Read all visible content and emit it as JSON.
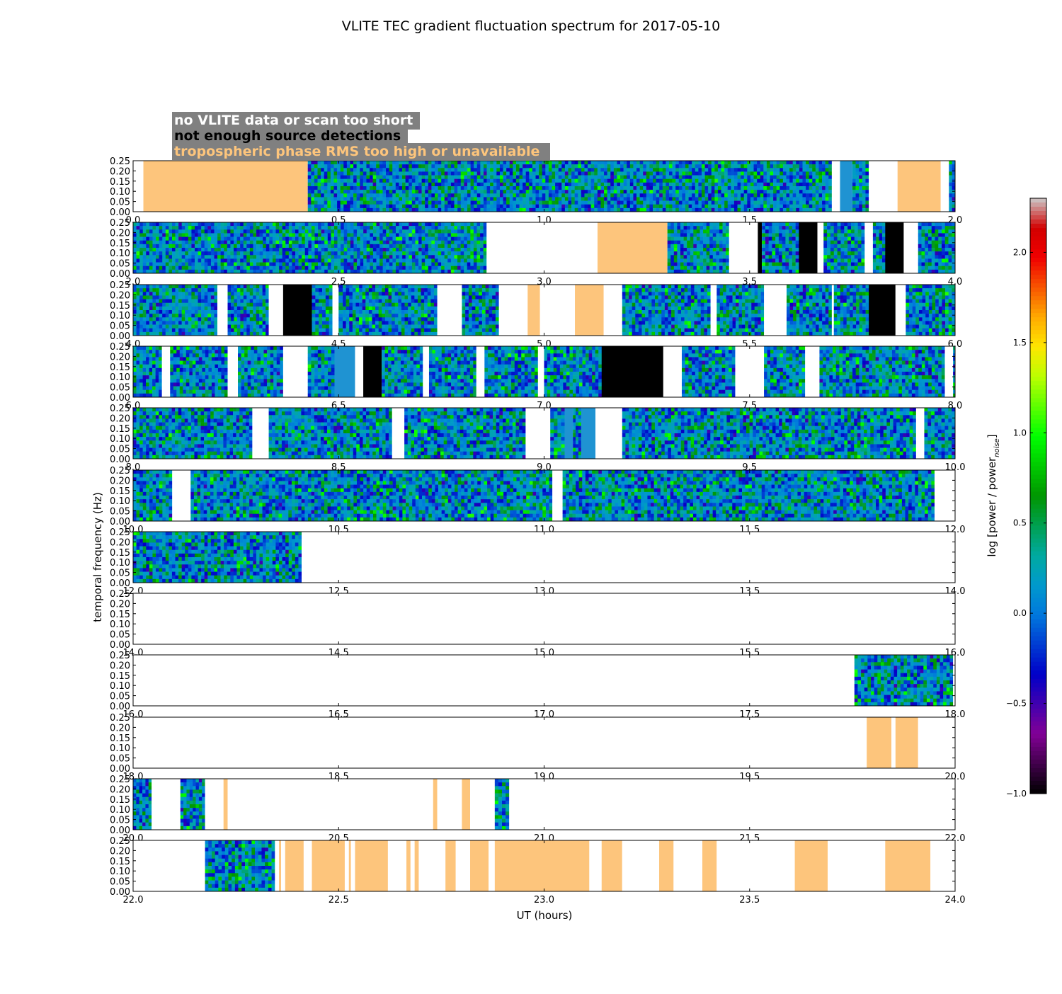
{
  "chart_data": {
    "type": "heatmap",
    "title": "VLITE TEC gradient fluctuation spectrum for 2017-05-10",
    "xlabel": "UT (hours)",
    "ylabel": "temporal frequency (Hz)",
    "ylim": [
      0.0,
      0.25
    ],
    "y_ticks": [
      "0.00",
      "0.05",
      "0.10",
      "0.15",
      "0.20",
      "0.25"
    ],
    "legend": {
      "placement": "top-left",
      "background": "#808080",
      "entries": [
        {
          "label": "no VLITE data or scan too short",
          "color": "#ffffff"
        },
        {
          "label": "not enough source detections",
          "color": "#000000"
        },
        {
          "label": "tropospheric phase RMS too high or unavailable",
          "color": "#fdc57c"
        }
      ]
    },
    "colorbar": {
      "label": "log [power / power",
      "label_subscript": "noise",
      "label_close": "]",
      "range": [
        -1.0,
        2.3
      ],
      "ticks": [
        "−1.0",
        "−0.5",
        "0.0",
        "0.5",
        "1.0",
        "1.5",
        "2.0"
      ],
      "colormap": "nipy_spectral"
    },
    "status_colors": {
      "data": "spectrum",
      "nodata": "#ffffff",
      "black": "#000000",
      "tropo": "#fdc57c",
      "flat": "#1f93d2"
    },
    "panels": [
      {
        "xlim": [
          0.0,
          2.0
        ],
        "x_ticks": [
          "0.0",
          "0.5",
          "1.0",
          "1.5",
          "2.0"
        ],
        "segments": [
          [
            0.0,
            0.025,
            "nodata"
          ],
          [
            0.025,
            0.425,
            "tropo"
          ],
          [
            0.425,
            1.7,
            "data"
          ],
          [
            1.7,
            1.72,
            "nodata"
          ],
          [
            1.72,
            1.75,
            "flat"
          ],
          [
            1.75,
            1.79,
            "data"
          ],
          [
            1.79,
            1.86,
            "nodata"
          ],
          [
            1.86,
            1.965,
            "tropo"
          ],
          [
            1.965,
            1.985,
            "nodata"
          ],
          [
            1.985,
            2.0,
            "data"
          ]
        ]
      },
      {
        "xlim": [
          2.0,
          4.0
        ],
        "x_ticks": [
          "2.0",
          "2.5",
          "3.0",
          "3.5",
          "4.0"
        ],
        "segments": [
          [
            2.0,
            2.86,
            "data"
          ],
          [
            2.86,
            3.13,
            "nodata"
          ],
          [
            3.13,
            3.3,
            "tropo"
          ],
          [
            3.3,
            3.45,
            "data"
          ],
          [
            3.45,
            3.52,
            "nodata"
          ],
          [
            3.52,
            3.53,
            "black"
          ],
          [
            3.53,
            3.62,
            "data"
          ],
          [
            3.62,
            3.665,
            "black"
          ],
          [
            3.665,
            3.68,
            "nodata"
          ],
          [
            3.68,
            3.705,
            "data"
          ],
          [
            3.705,
            3.78,
            "data"
          ],
          [
            3.78,
            3.8,
            "nodata"
          ],
          [
            3.8,
            3.83,
            "data"
          ],
          [
            3.83,
            3.875,
            "black"
          ],
          [
            3.875,
            3.91,
            "nodata"
          ],
          [
            3.91,
            4.0,
            "data"
          ]
        ]
      },
      {
        "xlim": [
          4.0,
          6.0
        ],
        "x_ticks": [
          "4.0",
          "4.5",
          "5.0",
          "5.5",
          "6.0"
        ],
        "segments": [
          [
            4.0,
            4.205,
            "data"
          ],
          [
            4.205,
            4.23,
            "nodata"
          ],
          [
            4.23,
            4.33,
            "data"
          ],
          [
            4.33,
            4.365,
            "nodata"
          ],
          [
            4.365,
            4.435,
            "black"
          ],
          [
            4.435,
            4.485,
            "data"
          ],
          [
            4.485,
            4.5,
            "nodata"
          ],
          [
            4.5,
            4.51,
            "data"
          ],
          [
            4.51,
            4.74,
            "data"
          ],
          [
            4.74,
            4.8,
            "nodata"
          ],
          [
            4.8,
            4.89,
            "data"
          ],
          [
            4.89,
            4.96,
            "nodata"
          ],
          [
            4.96,
            4.99,
            "tropo"
          ],
          [
            4.99,
            5.075,
            "nodata"
          ],
          [
            5.075,
            5.145,
            "tropo"
          ],
          [
            5.145,
            5.19,
            "nodata"
          ],
          [
            5.19,
            5.405,
            "data"
          ],
          [
            5.405,
            5.42,
            "nodata"
          ],
          [
            5.42,
            5.535,
            "data"
          ],
          [
            5.535,
            5.59,
            "nodata"
          ],
          [
            5.59,
            5.7,
            "data"
          ],
          [
            5.7,
            5.705,
            "nodata"
          ],
          [
            5.705,
            5.79,
            "data"
          ],
          [
            5.79,
            5.855,
            "black"
          ],
          [
            5.855,
            5.88,
            "nodata"
          ],
          [
            5.88,
            6.0,
            "data"
          ]
        ]
      },
      {
        "xlim": [
          6.0,
          8.0
        ],
        "x_ticks": [
          "6.0",
          "6.5",
          "7.0",
          "7.5",
          "8.0"
        ],
        "segments": [
          [
            6.0,
            6.07,
            "data"
          ],
          [
            6.07,
            6.09,
            "nodata"
          ],
          [
            6.09,
            6.23,
            "data"
          ],
          [
            6.23,
            6.255,
            "nodata"
          ],
          [
            6.255,
            6.365,
            "data"
          ],
          [
            6.365,
            6.425,
            "nodata"
          ],
          [
            6.425,
            6.49,
            "data"
          ],
          [
            6.49,
            6.54,
            "flat"
          ],
          [
            6.54,
            6.56,
            "nodata"
          ],
          [
            6.56,
            6.605,
            "black"
          ],
          [
            6.605,
            6.705,
            "data"
          ],
          [
            6.705,
            6.72,
            "nodata"
          ],
          [
            6.72,
            6.835,
            "data"
          ],
          [
            6.835,
            6.855,
            "nodata"
          ],
          [
            6.855,
            6.985,
            "data"
          ],
          [
            6.985,
            7.0,
            "nodata"
          ],
          [
            7.0,
            7.015,
            "data"
          ],
          [
            7.015,
            7.14,
            "data"
          ],
          [
            7.14,
            7.29,
            "black"
          ],
          [
            7.29,
            7.335,
            "nodata"
          ],
          [
            7.335,
            7.465,
            "data"
          ],
          [
            7.465,
            7.535,
            "nodata"
          ],
          [
            7.535,
            7.635,
            "data"
          ],
          [
            7.635,
            7.67,
            "nodata"
          ],
          [
            7.67,
            7.975,
            "data"
          ],
          [
            7.975,
            7.995,
            "nodata"
          ],
          [
            7.995,
            8.0,
            "data"
          ]
        ]
      },
      {
        "xlim": [
          8.0,
          10.0
        ],
        "x_ticks": [
          "8.0",
          "8.5",
          "9.0",
          "9.5",
          "10.0"
        ],
        "segments": [
          [
            8.0,
            8.29,
            "data"
          ],
          [
            8.29,
            8.33,
            "nodata"
          ],
          [
            8.33,
            8.63,
            "data"
          ],
          [
            8.63,
            8.66,
            "nodata"
          ],
          [
            8.66,
            8.955,
            "data"
          ],
          [
            8.955,
            9.015,
            "nodata"
          ],
          [
            9.015,
            9.05,
            "data"
          ],
          [
            9.05,
            9.07,
            "flat"
          ],
          [
            9.07,
            9.09,
            "data"
          ],
          [
            9.09,
            9.125,
            "flat"
          ],
          [
            9.125,
            9.19,
            "nodata"
          ],
          [
            9.19,
            9.905,
            "data"
          ],
          [
            9.905,
            9.925,
            "nodata"
          ],
          [
            9.925,
            10.0,
            "data"
          ]
        ]
      },
      {
        "xlim": [
          10.0,
          12.0
        ],
        "x_ticks": [
          "10.0",
          "10.5",
          "11.0",
          "11.5",
          "12.0"
        ],
        "segments": [
          [
            10.0,
            10.095,
            "data"
          ],
          [
            10.095,
            10.14,
            "nodata"
          ],
          [
            10.14,
            11.02,
            "data"
          ],
          [
            11.02,
            11.045,
            "nodata"
          ],
          [
            11.045,
            11.95,
            "data"
          ],
          [
            11.95,
            12.0,
            "nodata"
          ]
        ]
      },
      {
        "xlim": [
          12.0,
          14.0
        ],
        "x_ticks": [
          "12.0",
          "12.5",
          "13.0",
          "13.5",
          "14.0"
        ],
        "segments": [
          [
            12.0,
            12.41,
            "data"
          ],
          [
            12.41,
            14.0,
            "nodata"
          ]
        ]
      },
      {
        "xlim": [
          14.0,
          16.0
        ],
        "x_ticks": [
          "14.0",
          "14.5",
          "15.0",
          "15.5",
          "16.0"
        ],
        "segments": [
          [
            14.0,
            16.0,
            "nodata"
          ]
        ]
      },
      {
        "xlim": [
          16.0,
          18.0
        ],
        "x_ticks": [
          "16.0",
          "16.5",
          "17.0",
          "17.5",
          "18.0"
        ],
        "segments": [
          [
            16.0,
            17.755,
            "nodata"
          ],
          [
            17.755,
            17.995,
            "data"
          ],
          [
            17.995,
            18.0,
            "nodata"
          ]
        ]
      },
      {
        "xlim": [
          18.0,
          20.0
        ],
        "x_ticks": [
          "18.0",
          "18.5",
          "19.0",
          "19.5",
          "20.0"
        ],
        "segments": [
          [
            18.0,
            19.785,
            "nodata"
          ],
          [
            19.785,
            19.845,
            "tropo"
          ],
          [
            19.845,
            19.855,
            "nodata"
          ],
          [
            19.855,
            19.91,
            "tropo"
          ],
          [
            19.91,
            20.0,
            "nodata"
          ]
        ]
      },
      {
        "xlim": [
          20.0,
          22.0
        ],
        "x_ticks": [
          "20.0",
          "20.5",
          "21.0",
          "21.5",
          "22.0"
        ],
        "segments": [
          [
            20.0,
            20.045,
            "data"
          ],
          [
            20.045,
            20.115,
            "nodata"
          ],
          [
            20.115,
            20.175,
            "data"
          ],
          [
            20.175,
            20.22,
            "nodata"
          ],
          [
            20.22,
            20.23,
            "tropo"
          ],
          [
            20.23,
            20.73,
            "nodata"
          ],
          [
            20.73,
            20.74,
            "tropo"
          ],
          [
            20.74,
            20.8,
            "nodata"
          ],
          [
            20.8,
            20.82,
            "tropo"
          ],
          [
            20.82,
            20.88,
            "nodata"
          ],
          [
            20.88,
            20.915,
            "data"
          ],
          [
            20.915,
            22.0,
            "nodata"
          ]
        ]
      },
      {
        "xlim": [
          22.0,
          24.0
        ],
        "x_ticks": [
          "22.0",
          "22.5",
          "23.0",
          "23.5",
          "24.0"
        ],
        "segments": [
          [
            22.0,
            22.175,
            "nodata"
          ],
          [
            22.175,
            22.345,
            "data"
          ],
          [
            22.345,
            22.355,
            "nodata"
          ],
          [
            22.355,
            22.36,
            "tropo"
          ],
          [
            22.36,
            22.37,
            "nodata"
          ],
          [
            22.37,
            22.415,
            "tropo"
          ],
          [
            22.415,
            22.435,
            "nodata"
          ],
          [
            22.435,
            22.515,
            "tropo"
          ],
          [
            22.515,
            22.525,
            "nodata"
          ],
          [
            22.525,
            22.53,
            "tropo"
          ],
          [
            22.53,
            22.54,
            "nodata"
          ],
          [
            22.54,
            22.62,
            "tropo"
          ],
          [
            22.62,
            22.665,
            "nodata"
          ],
          [
            22.665,
            22.675,
            "tropo"
          ],
          [
            22.675,
            22.685,
            "nodata"
          ],
          [
            22.685,
            22.695,
            "tropo"
          ],
          [
            22.695,
            22.76,
            "nodata"
          ],
          [
            22.76,
            22.785,
            "tropo"
          ],
          [
            22.785,
            22.82,
            "nodata"
          ],
          [
            22.82,
            22.865,
            "tropo"
          ],
          [
            22.865,
            22.88,
            "nodata"
          ],
          [
            22.88,
            23.11,
            "tropo"
          ],
          [
            23.11,
            23.14,
            "nodata"
          ],
          [
            23.14,
            23.19,
            "tropo"
          ],
          [
            23.19,
            23.28,
            "nodata"
          ],
          [
            23.28,
            23.315,
            "tropo"
          ],
          [
            23.315,
            23.385,
            "nodata"
          ],
          [
            23.385,
            23.42,
            "tropo"
          ],
          [
            23.42,
            23.61,
            "nodata"
          ],
          [
            23.61,
            23.69,
            "tropo"
          ],
          [
            23.69,
            23.83,
            "nodata"
          ],
          [
            23.83,
            23.94,
            "tropo"
          ],
          [
            23.94,
            24.0,
            "nodata"
          ]
        ]
      }
    ]
  }
}
